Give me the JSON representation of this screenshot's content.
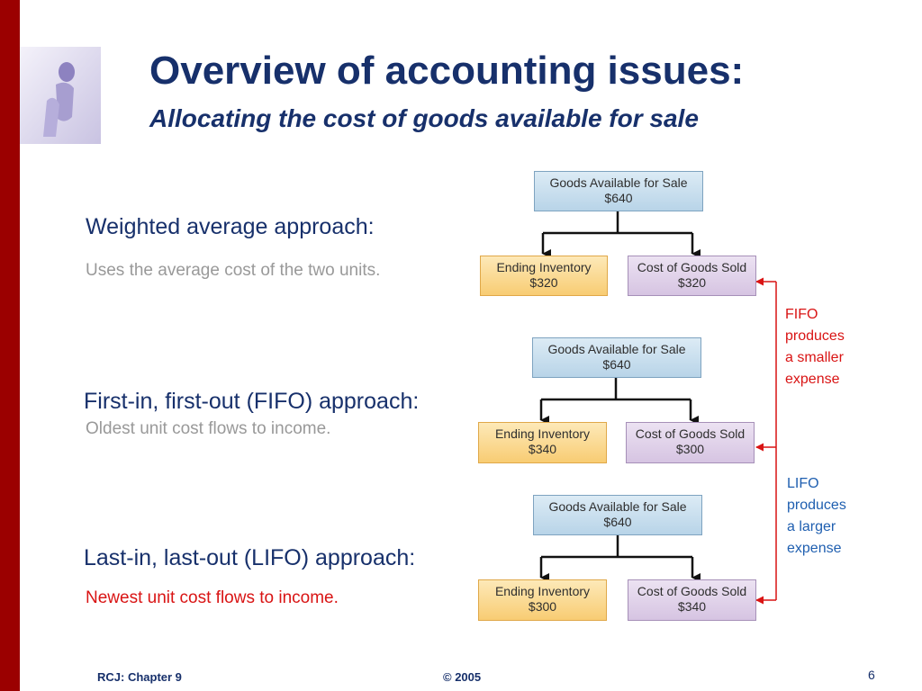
{
  "slide": {
    "title": "Overview of accounting issues:",
    "subtitle": "Allocating the cost of goods available for sale"
  },
  "sections": [
    {
      "heading": "Weighted average approach:",
      "description": "Uses the average cost of the two units."
    },
    {
      "heading": "First-in, first-out (FIFO) approach:",
      "description": "Oldest unit cost flows to income."
    },
    {
      "heading": "Last-in, last-out (LIFO) approach:",
      "description": "Newest unit cost flows to income."
    }
  ],
  "diagrams": [
    {
      "top": {
        "label": "Goods Available for Sale",
        "amount": "$640"
      },
      "left": {
        "label": "Ending Inventory",
        "amount": "$320"
      },
      "right": {
        "label": "Cost of Goods Sold",
        "amount": "$320"
      }
    },
    {
      "top": {
        "label": "Goods Available for Sale",
        "amount": "$640"
      },
      "left": {
        "label": "Ending Inventory",
        "amount": "$340"
      },
      "right": {
        "label": "Cost of Goods Sold",
        "amount": "$300"
      }
    },
    {
      "top": {
        "label": "Goods Available for Sale",
        "amount": "$640"
      },
      "left": {
        "label": "Ending Inventory",
        "amount": "$300"
      },
      "right": {
        "label": "Cost of Goods Sold",
        "amount": "$340"
      }
    }
  ],
  "notes": {
    "fifo": [
      "FIFO",
      "produces",
      "a smaller",
      "expense"
    ],
    "lifo": [
      "LIFO",
      "produces",
      "a larger",
      "expense"
    ]
  },
  "footer": {
    "chapter": "RCJ: Chapter 9",
    "copyright": "© 2005",
    "page": "6"
  },
  "colors": {
    "accent_bar": "#9b0000",
    "title": "#17306b",
    "fifo_note": "#d91414",
    "lifo_note": "#1f5fb0"
  }
}
